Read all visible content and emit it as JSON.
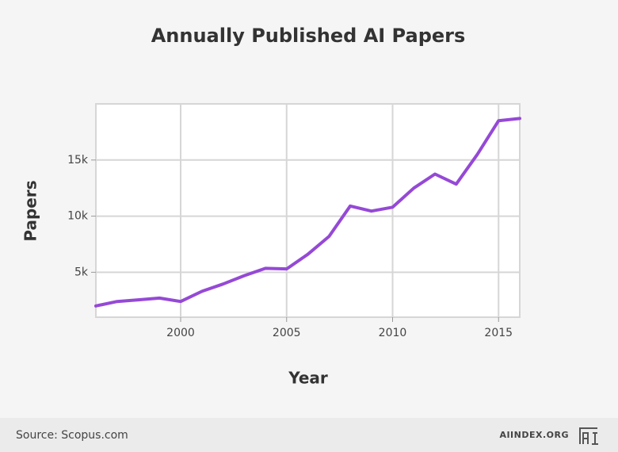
{
  "chart_data": {
    "type": "line",
    "title": "Annually Published AI Papers",
    "x_label": "Year",
    "y_label": "Papers",
    "x": [
      1996,
      1997,
      1998,
      1999,
      2000,
      2001,
      2002,
      2003,
      2004,
      2005,
      2006,
      2007,
      2008,
      2009,
      2010,
      2011,
      2012,
      2013,
      2014,
      2015,
      2016
    ],
    "series": [
      {
        "name": "Papers",
        "color": "#9549d6",
        "values": [
          2000,
          2400,
          2550,
          2700,
          2400,
          3300,
          3950,
          4700,
          5350,
          5300,
          6600,
          8200,
          10900,
          10450,
          10800,
          12500,
          13750,
          12850,
          15500,
          18500,
          18700
        ]
      }
    ],
    "xlim": [
      1996,
      2016
    ],
    "xticks": [
      2000,
      2005,
      2010,
      2015
    ],
    "ylim": [
      1000,
      20000
    ],
    "yticks": [
      {
        "value": 5000,
        "label": "5k"
      },
      {
        "value": 10000,
        "label": "10k"
      },
      {
        "value": 15000,
        "label": "15k"
      }
    ],
    "grid": true
  },
  "footer": {
    "source": "Source: Scopus.com",
    "brand": "AIINDEX.ORG"
  }
}
